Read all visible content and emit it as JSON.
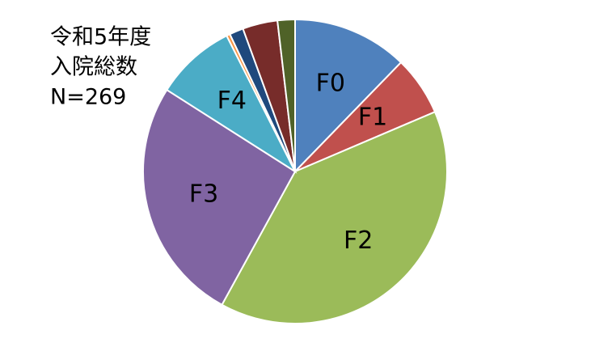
{
  "chart_data": {
    "type": "pie",
    "title": [
      "令和5年度",
      "入院総数",
      "N=269"
    ],
    "categories": [
      "F0",
      "F1",
      "F2",
      "F3",
      "F4",
      null,
      null,
      null,
      null
    ],
    "values": [
      33,
      17,
      106,
      70,
      23,
      1,
      4,
      10,
      5
    ],
    "colors": [
      "#4f81bd",
      "#c0504d",
      "#9bbb59",
      "#8064a2",
      "#4bacc6",
      "#f79646",
      "#1f497d",
      "#772c2a",
      "#4f6228"
    ]
  }
}
